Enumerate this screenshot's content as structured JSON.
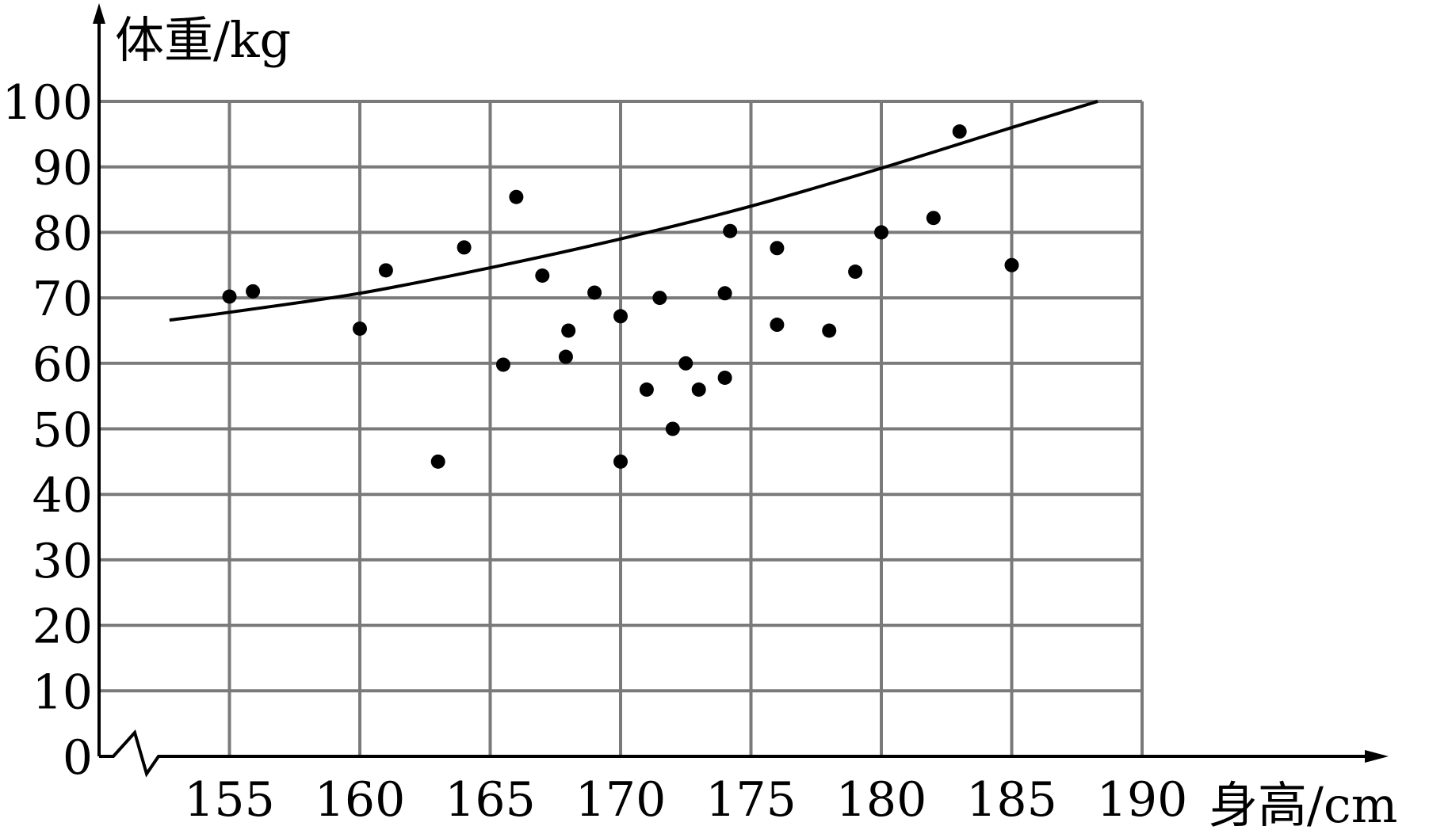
{
  "chart_data": {
    "type": "scatter",
    "xlabel": "身高/cm",
    "ylabel": "体重/kg",
    "x_ticks": [
      155,
      160,
      165,
      170,
      175,
      180,
      185,
      190
    ],
    "y_ticks": [
      0,
      10,
      20,
      30,
      40,
      50,
      60,
      70,
      80,
      90,
      100
    ],
    "xlim": [
      150,
      190
    ],
    "ylim": [
      0,
      100
    ],
    "axis_break": true,
    "grid": true,
    "colors": {
      "grid": "#7a7a7a",
      "axis": "#000000",
      "point": "#000000"
    },
    "points": [
      {
        "x": 155.0,
        "y": 70.2
      },
      {
        "x": 155.9,
        "y": 71.0
      },
      {
        "x": 160.0,
        "y": 65.3
      },
      {
        "x": 161.0,
        "y": 74.2
      },
      {
        "x": 163.0,
        "y": 45.0
      },
      {
        "x": 164.0,
        "y": 77.7
      },
      {
        "x": 165.5,
        "y": 59.8
      },
      {
        "x": 166.0,
        "y": 85.4
      },
      {
        "x": 167.0,
        "y": 73.4
      },
      {
        "x": 167.9,
        "y": 61.0
      },
      {
        "x": 168.0,
        "y": 65.0
      },
      {
        "x": 169.0,
        "y": 70.8
      },
      {
        "x": 170.0,
        "y": 67.2
      },
      {
        "x": 170.0,
        "y": 45.0
      },
      {
        "x": 171.0,
        "y": 56.0
      },
      {
        "x": 171.5,
        "y": 70.0
      },
      {
        "x": 172.0,
        "y": 50.0
      },
      {
        "x": 172.5,
        "y": 60.0
      },
      {
        "x": 173.0,
        "y": 56.0
      },
      {
        "x": 174.0,
        "y": 70.7
      },
      {
        "x": 174.0,
        "y": 57.8
      },
      {
        "x": 174.2,
        "y": 80.2
      },
      {
        "x": 176.0,
        "y": 77.6
      },
      {
        "x": 176.0,
        "y": 65.9
      },
      {
        "x": 178.0,
        "y": 65.0
      },
      {
        "x": 179.0,
        "y": 74.0
      },
      {
        "x": 180.0,
        "y": 80.0
      },
      {
        "x": 182.0,
        "y": 82.2
      },
      {
        "x": 183.0,
        "y": 95.4
      },
      {
        "x": 185.0,
        "y": 75.0
      }
    ],
    "curve": [
      {
        "x": 152.7,
        "y": 66.6
      },
      {
        "x": 155,
        "y": 67.8
      },
      {
        "x": 160,
        "y": 70.7
      },
      {
        "x": 165,
        "y": 74.6
      },
      {
        "x": 170,
        "y": 79.0
      },
      {
        "x": 175,
        "y": 84.0
      },
      {
        "x": 180,
        "y": 89.8
      },
      {
        "x": 185,
        "y": 96.0
      },
      {
        "x": 188.3,
        "y": 100.0
      }
    ]
  }
}
